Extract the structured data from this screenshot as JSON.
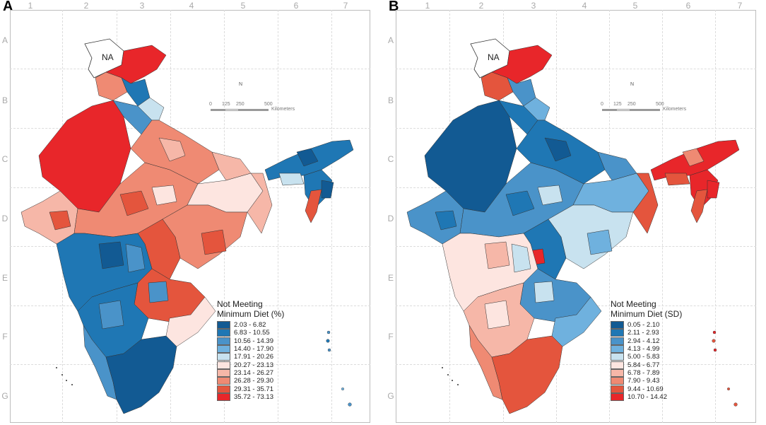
{
  "panels": [
    {
      "letter": "A",
      "columns": [
        "1",
        "2",
        "3",
        "4",
        "5",
        "6",
        "7"
      ],
      "rows": [
        "A",
        "B",
        "C",
        "D",
        "E",
        "F",
        "G"
      ],
      "na_label": "NA",
      "scale": {
        "north": "N",
        "ticks": [
          "0",
          "125",
          "250",
          "500"
        ],
        "unit": "Kilometers"
      },
      "legend": {
        "title_line1": "Not Meeting",
        "title_line2": "Minimum Diet (%)",
        "items": [
          {
            "label": "2.03 - 6.82",
            "color": "#125a93"
          },
          {
            "label": "6.83 - 10.55",
            "color": "#1f77b4"
          },
          {
            "label": "10.56 - 14.39",
            "color": "#4a93c9"
          },
          {
            "label": "14.40 - 17.90",
            "color": "#6fb1de"
          },
          {
            "label": "17.91 - 20.26",
            "color": "#c8e2ef"
          },
          {
            "label": "20.27 - 23.13",
            "color": "#fde5e0"
          },
          {
            "label": "23.14 - 26.27",
            "color": "#f6b7a8"
          },
          {
            "label": "26.28 - 29.30",
            "color": "#ef8a73"
          },
          {
            "label": "29.31 - 35.71",
            "color": "#e4553d"
          },
          {
            "label": "35.72 - 73.13",
            "color": "#e8262a"
          }
        ]
      }
    },
    {
      "letter": "B",
      "columns": [
        "1",
        "2",
        "3",
        "4",
        "5",
        "6",
        "7"
      ],
      "rows": [
        "A",
        "B",
        "C",
        "D",
        "E",
        "F",
        "G"
      ],
      "na_label": "NA",
      "scale": {
        "north": "N",
        "ticks": [
          "0",
          "125",
          "250",
          "500"
        ],
        "unit": "Kilometers"
      },
      "legend": {
        "title_line1": "Not Meeting",
        "title_line2": "Minimum Diet (SD)",
        "items": [
          {
            "label": "0.05 - 2.10",
            "color": "#125a93"
          },
          {
            "label": "2.11 - 2.93",
            "color": "#1f77b4"
          },
          {
            "label": "2.94 - 4.12",
            "color": "#4a93c9"
          },
          {
            "label": "4.13 - 4.99",
            "color": "#6fb1de"
          },
          {
            "label": "5.00 - 5.83",
            "color": "#c8e2ef"
          },
          {
            "label": "5.84 - 6.77",
            "color": "#fde5e0"
          },
          {
            "label": "6.78 - 7.89",
            "color": "#f6b7a8"
          },
          {
            "label": "7.90 - 9.43",
            "color": "#ef8a73"
          },
          {
            "label": "9.44 - 10.69",
            "color": "#e4553d"
          },
          {
            "label": "10.70 - 14.42",
            "color": "#e8262a"
          }
        ]
      }
    }
  ]
}
